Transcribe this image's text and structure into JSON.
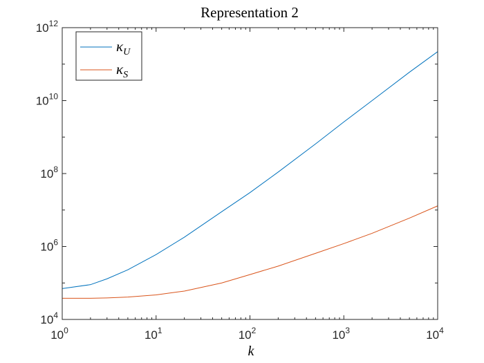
{
  "chart_data": {
    "type": "line",
    "title": "Representation 2",
    "xlabel": "k",
    "ylabel": "",
    "xscale": "log",
    "yscale": "log",
    "xlim": [
      1,
      10000
    ],
    "ylim": [
      10000,
      1000000000000
    ],
    "x_ticks": [
      {
        "base": "10",
        "exp": "0",
        "value": 1
      },
      {
        "base": "10",
        "exp": "1",
        "value": 10
      },
      {
        "base": "10",
        "exp": "2",
        "value": 100
      },
      {
        "base": "10",
        "exp": "3",
        "value": 1000
      },
      {
        "base": "10",
        "exp": "4",
        "value": 10000
      }
    ],
    "y_ticks": [
      {
        "base": "10",
        "exp": "4",
        "value": 10000
      },
      {
        "base": "10",
        "exp": "6",
        "value": 1000000
      },
      {
        "base": "10",
        "exp": "8",
        "value": 100000000
      },
      {
        "base": "10",
        "exp": "10",
        "value": 10000000000
      },
      {
        "base": "10",
        "exp": "12",
        "value": 1000000000000
      }
    ],
    "grid": false,
    "legend_position": "top-left",
    "series": [
      {
        "name": "κ",
        "subscript": "U",
        "color": "#0072bd",
        "x": [
          1,
          2,
          3,
          5,
          10,
          20,
          50,
          100,
          200,
          500,
          1000,
          2000,
          5000,
          10000
        ],
        "y": [
          70000,
          90000,
          130000,
          230000,
          600000,
          1800000,
          9000000,
          30000000,
          110000000,
          650000000,
          2600000000,
          10000000000,
          60000000000,
          220000000000
        ]
      },
      {
        "name": "κ",
        "subscript": "S",
        "color": "#d95319",
        "x": [
          1,
          2,
          3,
          5,
          10,
          20,
          50,
          100,
          200,
          500,
          1000,
          2000,
          5000,
          10000
        ],
        "y": [
          38000,
          38000,
          39000,
          41000,
          47000,
          60000,
          100000,
          170000,
          290000,
          650000,
          1200000,
          2300000,
          6000000,
          13000000
        ]
      }
    ]
  }
}
